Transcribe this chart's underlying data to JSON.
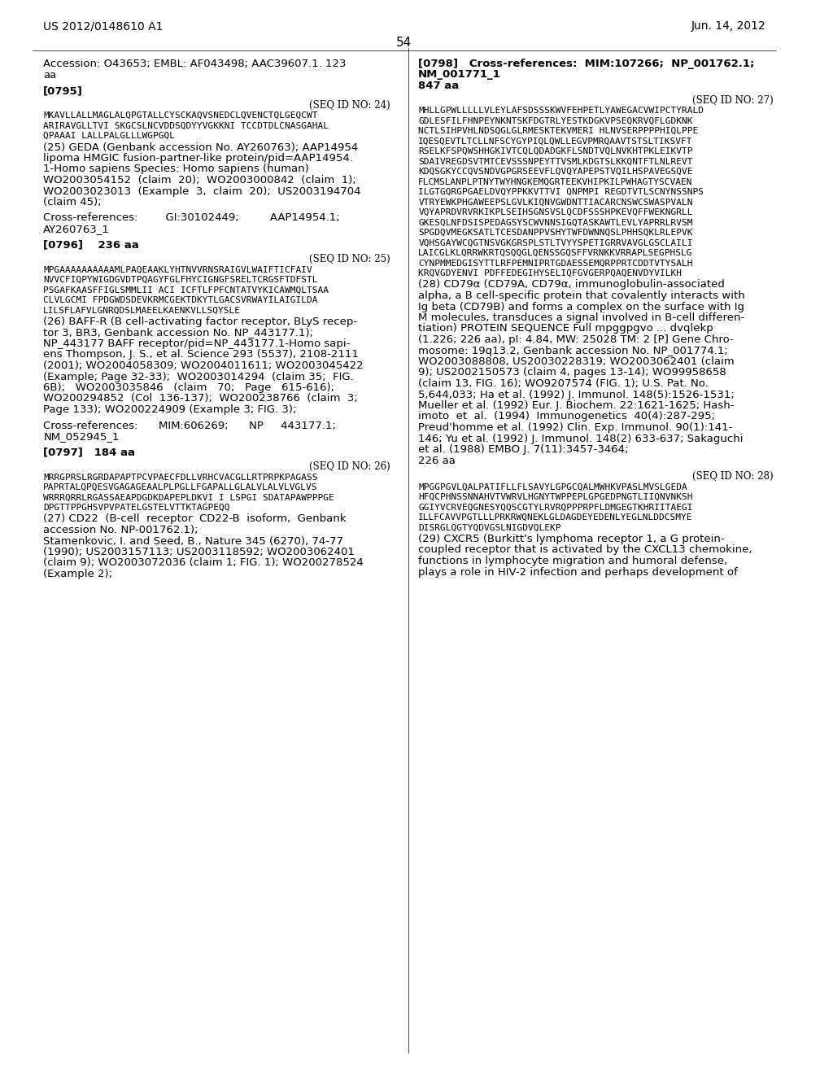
{
  "bg_color": "#ffffff",
  "header_left": "US 2012/0148610 A1",
  "header_right": "Jun. 14, 2012",
  "page_number": "54",
  "left_col": [
    {
      "type": "text",
      "style": "normal",
      "text": "Accession: O43653; EMBL: AF043498; AAC39607.1. 123\naa"
    },
    {
      "type": "text",
      "style": "bold",
      "text": "[0795]"
    },
    {
      "type": "seq_header",
      "text": "(SEQ ID NO: 24)"
    },
    {
      "type": "mono",
      "text": "MKAVLLALLMAGLALQPGTALLCYSCKAQVSNEDCLQVENCTQLGEQCWT"
    },
    {
      "type": "mono",
      "text": "ARIRAVGLLTVI SKGCSLNCVDDSQDYYVGKKNI TCCDTDLCNASGAHAL"
    },
    {
      "type": "mono",
      "text": "QPAAAI LALLPALGLLLWGPGQL"
    },
    {
      "type": "text",
      "style": "normal",
      "text": "(25) GEDA (Genbank accession No. AY260763); AAP14954\nlipoma HMGIC fusion-partner-like protein/pid=AAP14954.\n1-Homo sapiens Species: Homo sapiens (human)\nWO2003054152  (claim  20);  WO2003000842  (claim  1);\nWO2003023013  (Example  3,  claim  20);  US2003194704\n(claim 45);"
    },
    {
      "type": "text",
      "style": "normal",
      "text": "Cross-references:        GI:30102449;         AAP14954.1;\nAY260763_1"
    },
    {
      "type": "text",
      "style": "bold_inline",
      "text": "[0796]    236 aa"
    },
    {
      "type": "seq_header",
      "text": "(SEQ ID NO: 25)"
    },
    {
      "type": "mono",
      "text": "MPGAAAAAAAAAAMLPAQEAAKLYHTNVVRNSRAIGVLWAIFTICFAIV"
    },
    {
      "type": "mono",
      "text": "NVVCFIQPYWIGDGVDTPQAGYFGLFHYCIGNGFSRELTCRGSFTDFSTL"
    },
    {
      "type": "mono",
      "text": "PSGAFKAASFFIGLSMMLII ACI ICFTLFPFCNTATVYKICAWMQLTSAA"
    },
    {
      "type": "mono",
      "text": "CLVLGCMI FPDGWDSDEVKRMCGEKTDKYTLGACSVRWAYILAIGILDA"
    },
    {
      "type": "mono",
      "text": "LILSFLAFVLGNRQDSLMAEELKAENKVLLSQYSLE"
    },
    {
      "type": "text",
      "style": "normal",
      "text": "(26) BAFF-R (B cell-activating factor receptor, BLyS recep-\ntor 3, BR3, Genbank accession No. NP_443177.1);\nNP_443177 BAFF receptor/pid=NP_443177.1-Homo sapi-\nens Thompson, J. S., et al. Science 293 (5537), 2108-2111\n(2001); WO2004058309; WO2004011611; WO2003045422\n(Example; Page 32-33);  WO2003014294  (claim 35;  FIG.\n6B);   WO2003035846   (claim   70;   Page   615-616);\nWO200294852  (Col  136-137);  WO200238766  (claim  3;\nPage 133); WO200224909 (Example 3; FIG. 3);"
    },
    {
      "type": "text",
      "style": "normal",
      "text": "Cross-references:      MIM:606269;      NP     443177.1;\nNM_052945_1"
    },
    {
      "type": "text",
      "style": "bold_inline",
      "text": "[0797]   184 aa"
    },
    {
      "type": "seq_header",
      "text": "(SEQ ID NO: 26)"
    },
    {
      "type": "mono",
      "text": "MRRGPRSLRGRDAPAPTPCVPAECFDLLVRHCVACGLLRTPRPKPAGASS"
    },
    {
      "type": "mono",
      "text": "PAPRTALQPQESVGAGAGEAALPLPGLLFGAPALLGLALVLALVLVGLVS"
    },
    {
      "type": "mono",
      "text": "WRRRQRRLRGASSAEAPDGDKDAPEPLDKVI I LSPGI SDATAPAWPPPGE"
    },
    {
      "type": "mono",
      "text": "DPGTTPPGHSVPVPATELGSTELVTTKTAGPEQQ"
    },
    {
      "type": "text",
      "style": "normal",
      "text": "(27) CD22  (B-cell  receptor  CD22-B  isoform,  Genbank\naccession No. NP-001762.1);\nStamenkovic, I. and Seed, B., Nature 345 (6270), 74-77\n(1990); US2003157113; US2003118592; WO2003062401\n(claim 9); WO2003072036 (claim 1; FIG. 1); WO200278524\n(Example 2);"
    }
  ],
  "right_col": [
    {
      "type": "text",
      "style": "bold_inline",
      "text": "[0798]   Cross-references:  MIM:107266;  NP_001762.1;\nNM_001771_1\n847 aa"
    },
    {
      "type": "seq_header",
      "text": "(SEQ ID NO: 27)"
    },
    {
      "type": "mono",
      "text": "MHLLGPWLLLLLVLEYLAFSDSSSKWVFEHPETLYAWEGACVWIPCTYRALD"
    },
    {
      "type": "mono",
      "text": "GDLESFILFHNPEYNKNTSKFDGTRLYESTKDGKVPSEQKRVQFLGDKNK"
    },
    {
      "type": "mono",
      "text": "NCTLSIHPVHLNDSQGLGLRMESKTEKVMERI HLNVSERPPPPHIQLPPE"
    },
    {
      "type": "mono",
      "text": "IQESQEVTLTCLLNFSCYGYPIQLQWLLEGVPMRQAAVTSTSLTIKSVFT"
    },
    {
      "type": "mono",
      "text": "RSELKFSPQWSHHGKIVTCQLQDADGKFLSNDTVQLNVKHTPKLEIKVTP"
    },
    {
      "type": "mono",
      "text": "SDAIVREGDSVTMTCEVSSSNPEYTTVSMLKDGTSLKKQNTFTLNLREVT"
    },
    {
      "type": "mono",
      "text": "KDQSGKYCCQVSNDVGPGRSEEVFLQVQYAPEPSTVQILHSPAVEGSQVE"
    },
    {
      "type": "mono",
      "text": "FLCMSLANPLPTNYTWYHNGKEMQGRTEEKVHIPKILPWHAGTYSCVAEN"
    },
    {
      "type": "mono",
      "text": "ILGTGQRGPGAELDVQYPPKKVTTVI QNPMPI REGDTVTLSCNYNSSNPS"
    },
    {
      "type": "mono",
      "text": "VTRYEWKPHGAWEEPSLGVLKIQNVGWDNTTIACARCNSWCSWASPVALN"
    },
    {
      "type": "mono",
      "text": "VQYAPRDVRVRKIKPLSEIHSGNSVSLQCDFSSSHPKEVQFFWEKNGRLL"
    },
    {
      "type": "mono",
      "text": "GKESQLNFDSISPEDAGSYSCWVNNSIGQTASKAWTLEVLYAPRRLRVSM"
    },
    {
      "type": "mono",
      "text": "SPGDQVMEGKSATLTCESDANPPVSHYTWFDWNNQSLPHHSQKLRLEPVK"
    },
    {
      "type": "mono",
      "text": "VQHSGAYWCQGTNSVGKGRSPLSTLTVYYSPETIGRRVAVGLGSCLAILI"
    },
    {
      "type": "mono",
      "text": "LAICGLKLQRRWKRTQSQQGLQENSSGQSFFVRNKKVRRAPLSEGPHSLG"
    },
    {
      "type": "mono",
      "text": "CYNPMMEDGISYTTLRFPEMNIPRTGDAESSEMQRPPRTCDDTVTYSALH"
    },
    {
      "type": "mono",
      "text": "KRQVGDYENVI PDFFEDEGIHYSELIQFGVGERPQAQENVDYVILKH"
    },
    {
      "type": "text",
      "style": "normal",
      "text": "(28) CD79α (CD79A, CD79α, immunoglobulin-associated\nalpha, a B cell-specific protein that covalently interacts with\nIg beta (CD79B) and forms a complex on the surface with Ig\nM molecules, transduces a signal involved in B-cell differen-\ntiation) PROTEIN SEQUENCE Full mpggpgvo ... dvqlekp\n(1.226; 226 aa), pI: 4.84, MW: 25028 TM: 2 [P] Gene Chro-\nmosome: 19q13.2, Genbank accession No. NP_001774.1;\nWO2003088808, US20030228319; WO2003062401 (claim\n9); US2002150573 (claim 4, pages 13-14); WO99958658\n(claim 13, FIG. 16); WO9207574 (FIG. 1); U.S. Pat. No.\n5,644,033; Ha et al. (1992) J. Immunol. 148(5):1526-1531;\nMueller et al. (1992) Eur. J. Biochem. 22:1621-1625; Hash-\nimoto  et  al.  (1994)  Immunogenetics  40(4):287-295;\nPreud'homme et al. (1992) Clin. Exp. Immunol. 90(1):141-\n146; Yu et al. (1992) J. Immunol. 148(2) 633-637; Sakaguchi\net al. (1988) EMBO J. 7(11):3457-3464;\n226 aa"
    },
    {
      "type": "seq_header",
      "text": "(SEQ ID NO: 28)"
    },
    {
      "type": "mono",
      "text": "MPGGPGVLQALPATIFLLFLSAVYLGPGCQALMWHKVPASLMVSLGEDA"
    },
    {
      "type": "mono",
      "text": "HFQCPHNSSNNAHVTVWRVLHGNYTWPPEPLGPGEDPNGTLIIQNVNKSH"
    },
    {
      "type": "mono",
      "text": "GGIYVCRVEQGNESYQQSCGTYLRVRQPPPRPFLDMGEGTKHRIITAEGI"
    },
    {
      "type": "mono",
      "text": "ILLFCAVVPGTLLLPRKRWQNEKLGLDAGDEYEDENLYEGLNLDDCSMYE"
    },
    {
      "type": "mono",
      "text": "DISRGLQGTYQDVGSLNIGDVQLEKP"
    },
    {
      "type": "text",
      "style": "normal",
      "text": "(29) CXCR5 (Burkitt's lymphoma receptor 1, a G protein-\ncoupled receptor that is activated by the CXCL13 chemokine,\nfunctions in lymphocyte migration and humoral defense,\nplays a role in HIV-2 infection and perhaps development of"
    }
  ]
}
